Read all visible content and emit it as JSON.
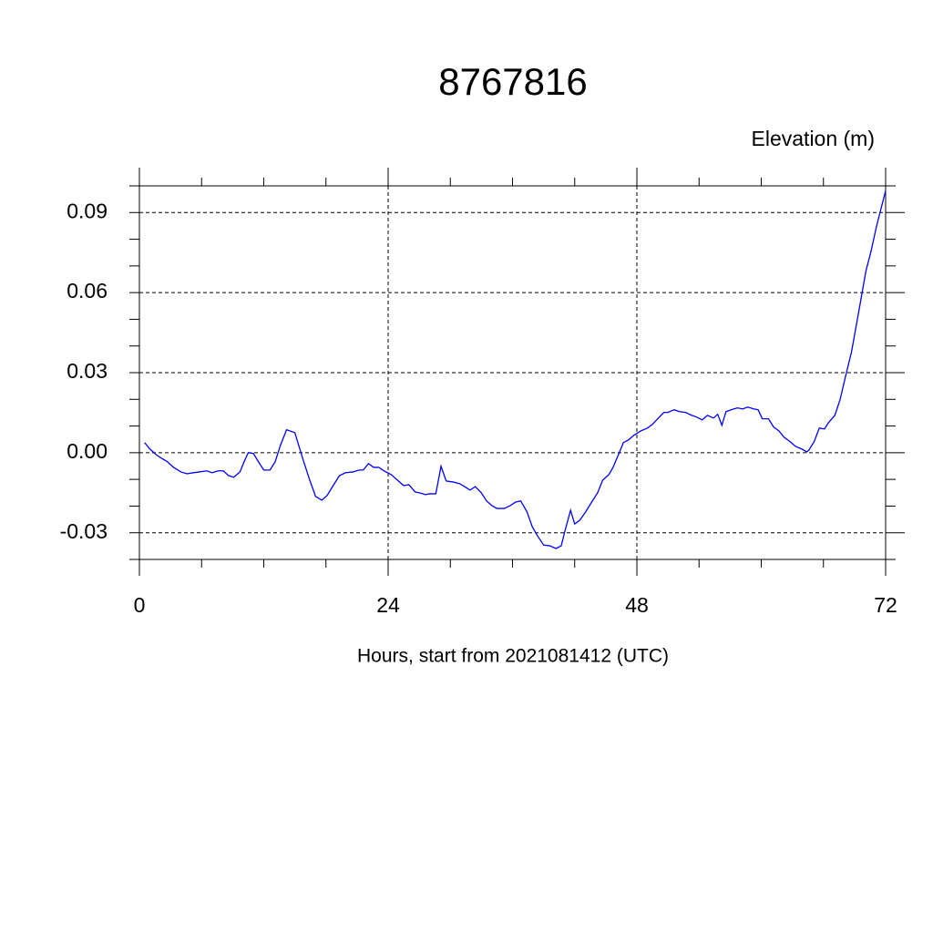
{
  "chart_data": {
    "type": "line",
    "title": "8767816",
    "subtitle": "Elevation (m)",
    "x_label": "Hours, start from 2021081412 (UTC)",
    "xlim": [
      0,
      72
    ],
    "ylim": [
      -0.04,
      0.1
    ],
    "xticks": [
      0,
      24,
      48,
      72
    ],
    "xminorticks": [
      6,
      12,
      18,
      30,
      36,
      42,
      54,
      60,
      66
    ],
    "yticks": [
      -0.03,
      {
        "value": 0,
        "label": "0.00"
      },
      0.03,
      0.06,
      0.09
    ],
    "yminorticks": [
      -0.04,
      -0.02,
      -0.01,
      0.01,
      0.02,
      0.04,
      0.05,
      0.07,
      0.08,
      0.1
    ],
    "grid": true,
    "series": [
      {
        "color": "#0000ff",
        "x": [
          0.5,
          1,
          1.7,
          2.1,
          2.7,
          3.3,
          4,
          4.6,
          5.2,
          5.8,
          6.5,
          7,
          7.6,
          8.1,
          8.6,
          9.1,
          9.7,
          10.1,
          10.5,
          11,
          11.6,
          12,
          12.6,
          13.1,
          13.6,
          14.2,
          15,
          15.8,
          16.4,
          17,
          17.6,
          18.1,
          18.7,
          19.3,
          19.9,
          20.6,
          21.2,
          21.6,
          22.1,
          22.6,
          23.1,
          23.6,
          24.3,
          24.9,
          25.5,
          26,
          26.6,
          27.1,
          27.6,
          28,
          28.6,
          29.1,
          29.6,
          30.3,
          30.9,
          31.5,
          31.9,
          32.4,
          33,
          33.5,
          34,
          34.5,
          35.2,
          35.8,
          36.3,
          36.8,
          37.4,
          37.9,
          38.4,
          39,
          39.6,
          40.2,
          40.7,
          41.1,
          41.6,
          42,
          42.5,
          43.1,
          43.7,
          44.2,
          44.7,
          45.3,
          45.7,
          46.3,
          46.7,
          47.2,
          47.7,
          48.4,
          49,
          49.5,
          50,
          50.6,
          51,
          51.6,
          52.1,
          52.7,
          53.3,
          53.8,
          54.3,
          54.8,
          55.4,
          55.8,
          56.2,
          56.6,
          57.1,
          57.7,
          58.2,
          58.7,
          59.3,
          59.7,
          60.1,
          60.7,
          61.2,
          61.7,
          62.2,
          62.8,
          63.3,
          63.9,
          64.4,
          64.6,
          65.1,
          65.6,
          66.1,
          66.5,
          67.1,
          67.6,
          68.1,
          68.7,
          69.4,
          70.1,
          70.6,
          71.1,
          72
        ],
        "values": [
          0.0038,
          0.0014,
          -0.001,
          -0.002,
          -0.0034,
          -0.0055,
          -0.0072,
          -0.0079,
          -0.0075,
          -0.0072,
          -0.0068,
          -0.0075,
          -0.0068,
          -0.0068,
          -0.0086,
          -0.0092,
          -0.0072,
          -0.0034,
          0,
          -0.0003,
          -0.0041,
          -0.0065,
          -0.0065,
          -0.0034,
          0.0027,
          0.0086,
          0.0075,
          -0.0027,
          -0.0099,
          -0.0164,
          -0.0178,
          -0.0161,
          -0.0123,
          -0.0086,
          -0.0075,
          -0.0072,
          -0.0065,
          -0.0065,
          -0.0041,
          -0.0055,
          -0.0055,
          -0.0068,
          -0.0082,
          -0.0103,
          -0.0123,
          -0.012,
          -0.0147,
          -0.0151,
          -0.0157,
          -0.0154,
          -0.0154,
          -0.0051,
          -0.0106,
          -0.011,
          -0.0116,
          -0.013,
          -0.014,
          -0.0127,
          -0.0151,
          -0.0181,
          -0.0198,
          -0.0209,
          -0.0209,
          -0.0198,
          -0.0185,
          -0.0181,
          -0.0222,
          -0.0277,
          -0.0311,
          -0.0346,
          -0.0349,
          -0.0359,
          -0.0349,
          -0.0287,
          -0.0216,
          -0.0267,
          -0.0253,
          -0.0219,
          -0.0181,
          -0.0151,
          -0.0103,
          -0.0082,
          -0.0055,
          0,
          0.0038,
          0.0048,
          0.0065,
          0.0082,
          0.0092,
          0.0106,
          0.0127,
          0.0151,
          0.0151,
          0.0161,
          0.0154,
          0.0151,
          0.014,
          0.0133,
          0.0123,
          0.014,
          0.013,
          0.0144,
          0.0103,
          0.0154,
          0.0161,
          0.0168,
          0.0164,
          0.0171,
          0.0164,
          0.0161,
          0.0127,
          0.0127,
          0.0096,
          0.0082,
          0.0058,
          0.0041,
          0.0024,
          0.0014,
          0.0003,
          0.001,
          0.0041,
          0.0092,
          0.0089,
          0.0113,
          0.014,
          0.0198,
          0.0281,
          0.0376,
          0.0527,
          0.0681,
          0.0756,
          0.0845,
          0.0982
        ]
      }
    ]
  }
}
